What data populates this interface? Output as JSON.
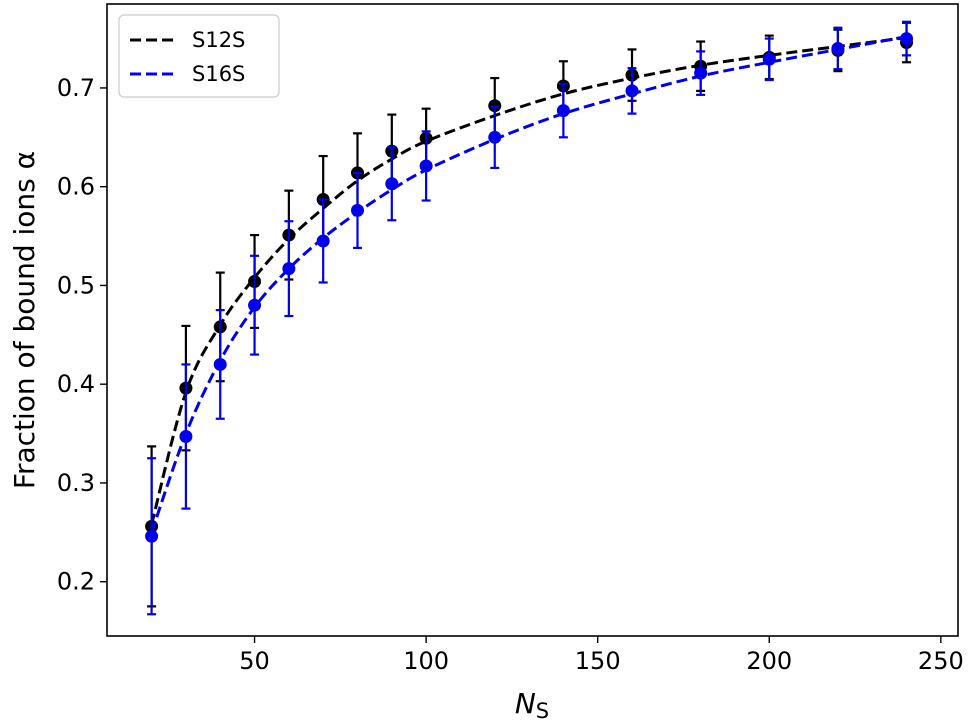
{
  "chart_data": {
    "type": "scatter",
    "xlabel_main": "N",
    "xlabel_sub": "S",
    "ylabel": "Fraction of bound ions α",
    "xlim": [
      7,
      255
    ],
    "ylim": [
      0.145,
      0.785
    ],
    "xticks": [
      50,
      100,
      150,
      200,
      250
    ],
    "yticks": [
      0.2,
      0.3,
      0.4,
      0.5,
      0.6,
      0.7
    ],
    "xtick_labels": [
      "50",
      "100",
      "150",
      "200",
      "250"
    ],
    "ytick_labels": [
      "0.2",
      "0.3",
      "0.4",
      "0.5",
      "0.6",
      "0.7"
    ],
    "grid": false,
    "legend_position": "top-left",
    "series": [
      {
        "name": "S12S",
        "color": "#000000",
        "x": [
          20,
          30,
          40,
          50,
          60,
          70,
          80,
          90,
          100,
          120,
          140,
          160,
          180,
          200,
          220,
          240
        ],
        "y": [
          0.256,
          0.396,
          0.458,
          0.504,
          0.551,
          0.587,
          0.614,
          0.636,
          0.649,
          0.682,
          0.702,
          0.713,
          0.722,
          0.731,
          0.738,
          0.746
        ],
        "yerr": [
          0.081,
          0.063,
          0.055,
          0.047,
          0.045,
          0.044,
          0.04,
          0.037,
          0.03,
          0.028,
          0.025,
          0.026,
          0.025,
          0.022,
          0.021,
          0.02
        ],
        "fit": [
          0.258,
          0.392,
          0.46,
          0.508,
          0.547,
          0.578,
          0.606,
          0.628,
          0.646,
          0.672,
          0.694,
          0.71,
          0.723,
          0.733,
          0.742,
          0.751
        ]
      },
      {
        "name": "S16S",
        "color": "#0000ee",
        "x": [
          20,
          30,
          40,
          50,
          60,
          70,
          80,
          90,
          100,
          120,
          140,
          160,
          180,
          200,
          220,
          240
        ],
        "y": [
          0.246,
          0.347,
          0.42,
          0.48,
          0.517,
          0.545,
          0.576,
          0.603,
          0.621,
          0.65,
          0.677,
          0.697,
          0.715,
          0.729,
          0.74,
          0.75
        ],
        "yerr": [
          0.079,
          0.073,
          0.055,
          0.05,
          0.048,
          0.042,
          0.038,
          0.037,
          0.035,
          0.031,
          0.027,
          0.023,
          0.022,
          0.021,
          0.021,
          0.017
        ],
        "fit": [
          0.25,
          0.35,
          0.424,
          0.478,
          0.517,
          0.548,
          0.574,
          0.597,
          0.617,
          0.648,
          0.674,
          0.694,
          0.712,
          0.726,
          0.739,
          0.752
        ]
      }
    ]
  }
}
